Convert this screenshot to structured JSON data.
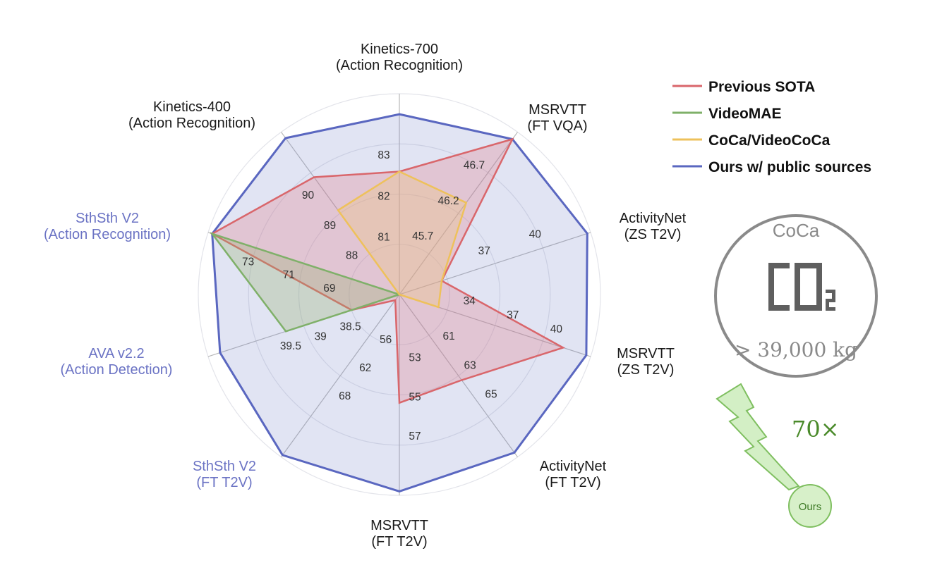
{
  "chart_data": {
    "type": "radar",
    "axes": [
      {
        "label": [
          "Kinetics-700",
          "(Action Recognition)"
        ],
        "color": "#1a1a1a",
        "ticks": [
          "81",
          "82",
          "83"
        ],
        "range": [
          79.6,
          84.5
        ]
      },
      {
        "label": [
          "MSRVTT",
          "(FT VQA)"
        ],
        "color": "#1a1a1a",
        "ticks": [
          "45.7",
          "46.2",
          "46.7"
        ],
        "range": [
          45.0,
          47.3
        ]
      },
      {
        "label": [
          "ActivityNet",
          "(ZS T2V)"
        ],
        "color": "#1a1a1a",
        "ticks": [
          "37",
          "40"
        ],
        "range": [
          31.7,
          43.0
        ]
      },
      {
        "label": [
          "MSRVTT",
          "(ZS T2V)"
        ],
        "color": "#1a1a1a",
        "ticks": [
          "34",
          "37",
          "40"
        ],
        "range": [
          29.5,
          42.7
        ]
      },
      {
        "label": [
          "ActivityNet",
          "(FT T2V)"
        ],
        "color": "#1a1a1a",
        "ticks": [
          "61",
          "63",
          "65"
        ],
        "range": [
          57.5,
          68.7
        ]
      },
      {
        "label": [
          "MSRVTT",
          "(FT T2V)"
        ],
        "color": "#1a1a1a",
        "ticks": [
          "53",
          "55",
          "57"
        ],
        "range": [
          49.8,
          60.0
        ]
      },
      {
        "label": [
          "SthSth V2",
          "(FT T2V)"
        ],
        "color": "#6b73c4",
        "ticks": [
          "56",
          "62",
          "68"
        ],
        "range": [
          48.3,
          83.0
        ]
      },
      {
        "label": [
          "AVA v2.2",
          "(Action Detection)"
        ],
        "color": "#6b73c4",
        "ticks": [
          "38.5",
          "39",
          "39.5"
        ],
        "range": [
          37.6,
          40.8
        ]
      },
      {
        "label": [
          "SthSth V2",
          "(Action Recognition)"
        ],
        "color": "#6b73c4",
        "ticks": [
          "69",
          "71",
          "73"
        ],
        "range": [
          65.8,
          75.2
        ]
      },
      {
        "label": [
          "Kinetics-400",
          "(Action Recognition)"
        ],
        "color": "#1a1a1a",
        "ticks": [
          "88",
          "89",
          "90"
        ],
        "range": [
          86.4,
          91.8
        ]
      }
    ],
    "series": [
      {
        "name": "Ours w/ public sources",
        "color": "#5a67c0",
        "fill": "rgba(120,134,200,0.22)",
        "width": 3,
        "values": [
          84.0,
          47.2,
          42.8,
          42.4,
          68.4,
          59.8,
          82.6,
          40.6,
          75.0,
          91.6
        ]
      },
      {
        "name": "Previous SOTA",
        "color": "#d9666b",
        "fill": "rgba(225,120,130,0.28)",
        "width": 2.5,
        "values": [
          82.6,
          47.2,
          34.2,
          40.8,
          63.4,
          55.3,
          49.5,
          38.4,
          75.0,
          90.3
        ]
      },
      {
        "name": "VideoMAE",
        "color": "#7fb069",
        "fill": "rgba(150,175,110,0.30)",
        "width": 2.5,
        "values": [
          null,
          null,
          null,
          null,
          null,
          null,
          null,
          39.5,
          75.0,
          null
        ]
      },
      {
        "name": "CoCa/VideoCoCa",
        "color": "#eec15b",
        "fill": "rgba(238,200,120,0.30)",
        "width": 2.5,
        "values": [
          82.6,
          46.3,
          34.2,
          32.2,
          null,
          null,
          null,
          null,
          null,
          89.2
        ]
      }
    ],
    "legend_order": [
      "Previous SOTA",
      "VideoMAE",
      "CoCa/VideoCoCa",
      "Ours w/ public sources"
    ],
    "legend_position": "top-right"
  },
  "annotation": {
    "badge_title": "CoCa",
    "emission": "> 39,000 kg",
    "ratio": "70×",
    "ours_label": "Ours"
  }
}
